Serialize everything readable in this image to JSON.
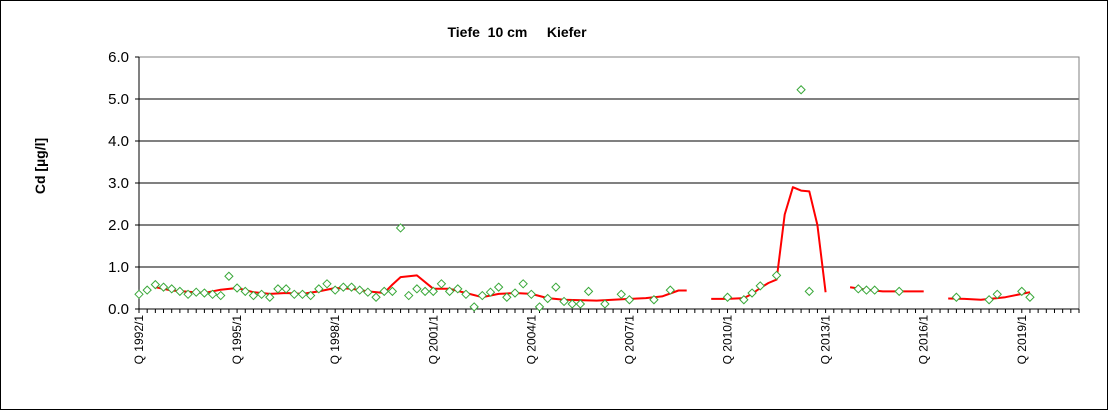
{
  "chart_data": {
    "type": "line",
    "title": "Tiefe  10 cm     Kiefer",
    "ylabel": "Cd [µg/l]",
    "xlabel": "",
    "ylim": [
      0,
      6
    ],
    "xlim": [
      1992.0,
      2020.75
    ],
    "y_ticks": [
      "0.0",
      "1.0",
      "2.0",
      "3.0",
      "4.0",
      "5.0",
      "6.0"
    ],
    "x_ticks": [
      {
        "x": 1992.0,
        "label": "Q 1992/1"
      },
      {
        "x": 1995.0,
        "label": "Q 1995/1"
      },
      {
        "x": 1998.0,
        "label": "Q 1998/1"
      },
      {
        "x": 2001.0,
        "label": "Q 2001/1"
      },
      {
        "x": 2004.0,
        "label": "Q 2004/1"
      },
      {
        "x": 2007.0,
        "label": "Q 2007/1"
      },
      {
        "x": 2010.0,
        "label": "Q 2010/1"
      },
      {
        "x": 2013.0,
        "label": "Q 2013/1"
      },
      {
        "x": 2016.0,
        "label": "Q 2016/1"
      },
      {
        "x": 2019.0,
        "label": "Q 2019/1"
      }
    ],
    "grid": {
      "horizontal": true,
      "vertical": false
    },
    "colors": {
      "line": "#ff0000",
      "marker": "#3aa83a",
      "plot_border": "#808080",
      "grid": "#000000"
    },
    "series": [
      {
        "type": "scatter",
        "marker": "diamond-open",
        "points": [
          [
            1992.0,
            0.35
          ],
          [
            1992.25,
            0.45
          ],
          [
            1992.5,
            0.58
          ],
          [
            1992.75,
            0.52
          ],
          [
            1993.0,
            0.48
          ],
          [
            1993.25,
            0.42
          ],
          [
            1993.5,
            0.35
          ],
          [
            1993.75,
            0.4
          ],
          [
            1994.0,
            0.38
          ],
          [
            1994.25,
            0.35
          ],
          [
            1994.5,
            0.32
          ],
          [
            1994.75,
            0.78
          ],
          [
            1995.0,
            0.5
          ],
          [
            1995.25,
            0.42
          ],
          [
            1995.5,
            0.32
          ],
          [
            1995.75,
            0.35
          ],
          [
            1996.0,
            0.28
          ],
          [
            1996.25,
            0.48
          ],
          [
            1996.5,
            0.48
          ],
          [
            1996.75,
            0.35
          ],
          [
            1997.0,
            0.35
          ],
          [
            1997.25,
            0.32
          ],
          [
            1997.5,
            0.48
          ],
          [
            1997.75,
            0.6
          ],
          [
            1998.0,
            0.45
          ],
          [
            1998.25,
            0.52
          ],
          [
            1998.5,
            0.52
          ],
          [
            1998.75,
            0.45
          ],
          [
            1999.0,
            0.4
          ],
          [
            1999.25,
            0.28
          ],
          [
            1999.5,
            0.42
          ],
          [
            1999.75,
            0.42
          ],
          [
            2000.0,
            1.93
          ],
          [
            2000.25,
            0.32
          ],
          [
            2000.5,
            0.48
          ],
          [
            2000.75,
            0.42
          ],
          [
            2001.0,
            0.42
          ],
          [
            2001.25,
            0.6
          ],
          [
            2001.5,
            0.42
          ],
          [
            2001.75,
            0.48
          ],
          [
            2002.0,
            0.35
          ],
          [
            2002.25,
            0.05
          ],
          [
            2002.5,
            0.32
          ],
          [
            2002.75,
            0.4
          ],
          [
            2003.0,
            0.52
          ],
          [
            2003.25,
            0.28
          ],
          [
            2003.5,
            0.38
          ],
          [
            2003.75,
            0.6
          ],
          [
            2004.0,
            0.35
          ],
          [
            2004.25,
            0.05
          ],
          [
            2004.5,
            0.25
          ],
          [
            2004.75,
            0.52
          ],
          [
            2005.0,
            0.18
          ],
          [
            2005.25,
            0.12
          ],
          [
            2005.5,
            0.12
          ],
          [
            2005.75,
            0.42
          ],
          [
            2006.25,
            0.12
          ],
          [
            2006.75,
            0.35
          ],
          [
            2007.0,
            0.22
          ],
          [
            2007.75,
            0.22
          ],
          [
            2008.25,
            0.45
          ],
          [
            2010.0,
            0.28
          ],
          [
            2010.5,
            0.22
          ],
          [
            2010.75,
            0.38
          ],
          [
            2011.0,
            0.55
          ],
          [
            2011.5,
            0.8
          ],
          [
            2012.25,
            5.22
          ],
          [
            2012.5,
            0.42
          ],
          [
            2014.0,
            0.48
          ],
          [
            2014.25,
            0.45
          ],
          [
            2014.5,
            0.45
          ],
          [
            2015.25,
            0.42
          ],
          [
            2017.0,
            0.28
          ],
          [
            2018.0,
            0.22
          ],
          [
            2018.25,
            0.35
          ],
          [
            2019.0,
            0.42
          ],
          [
            2019.25,
            0.28
          ]
        ]
      },
      {
        "type": "line",
        "segments": [
          [
            [
              1992.5,
              0.52
            ],
            [
              1993.0,
              0.44
            ],
            [
              1994.0,
              0.38
            ],
            [
              1994.5,
              0.46
            ],
            [
              1995.0,
              0.5
            ],
            [
              1995.5,
              0.4
            ],
            [
              1996.0,
              0.36
            ],
            [
              1996.5,
              0.38
            ],
            [
              1997.0,
              0.36
            ],
            [
              1997.5,
              0.42
            ],
            [
              1998.0,
              0.5
            ],
            [
              1998.5,
              0.48
            ],
            [
              1999.0,
              0.42
            ],
            [
              1999.5,
              0.38
            ],
            [
              1999.75,
              0.58
            ],
            [
              2000.0,
              0.76
            ],
            [
              2000.5,
              0.8
            ],
            [
              2001.0,
              0.48
            ],
            [
              2001.5,
              0.48
            ],
            [
              2002.0,
              0.38
            ],
            [
              2002.5,
              0.28
            ],
            [
              2003.0,
              0.36
            ],
            [
              2003.5,
              0.38
            ],
            [
              2004.0,
              0.36
            ],
            [
              2004.5,
              0.26
            ],
            [
              2005.0,
              0.22
            ],
            [
              2006.0,
              0.2
            ],
            [
              2006.5,
              0.22
            ],
            [
              2007.0,
              0.24
            ],
            [
              2007.5,
              0.26
            ],
            [
              2008.0,
              0.3
            ],
            [
              2008.5,
              0.44
            ],
            [
              2008.75,
              0.44
            ]
          ],
          [
            [
              2009.5,
              0.24
            ],
            [
              2010.0,
              0.24
            ],
            [
              2010.5,
              0.26
            ],
            [
              2010.75,
              0.36
            ],
            [
              2011.0,
              0.5
            ],
            [
              2011.25,
              0.62
            ],
            [
              2011.5,
              0.7
            ],
            [
              2011.75,
              2.25
            ],
            [
              2012.0,
              2.9
            ],
            [
              2012.25,
              2.82
            ],
            [
              2012.5,
              2.8
            ],
            [
              2012.75,
              2.0
            ],
            [
              2013.0,
              0.4
            ]
          ],
          [
            [
              2013.75,
              0.52
            ],
            [
              2014.25,
              0.46
            ],
            [
              2014.75,
              0.42
            ],
            [
              2015.5,
              0.42
            ],
            [
              2016.0,
              0.42
            ]
          ],
          [
            [
              2016.75,
              0.25
            ],
            [
              2017.25,
              0.24
            ],
            [
              2017.75,
              0.22
            ],
            [
              2018.25,
              0.26
            ],
            [
              2018.5,
              0.28
            ],
            [
              2019.0,
              0.36
            ],
            [
              2019.25,
              0.4
            ]
          ]
        ]
      }
    ]
  }
}
